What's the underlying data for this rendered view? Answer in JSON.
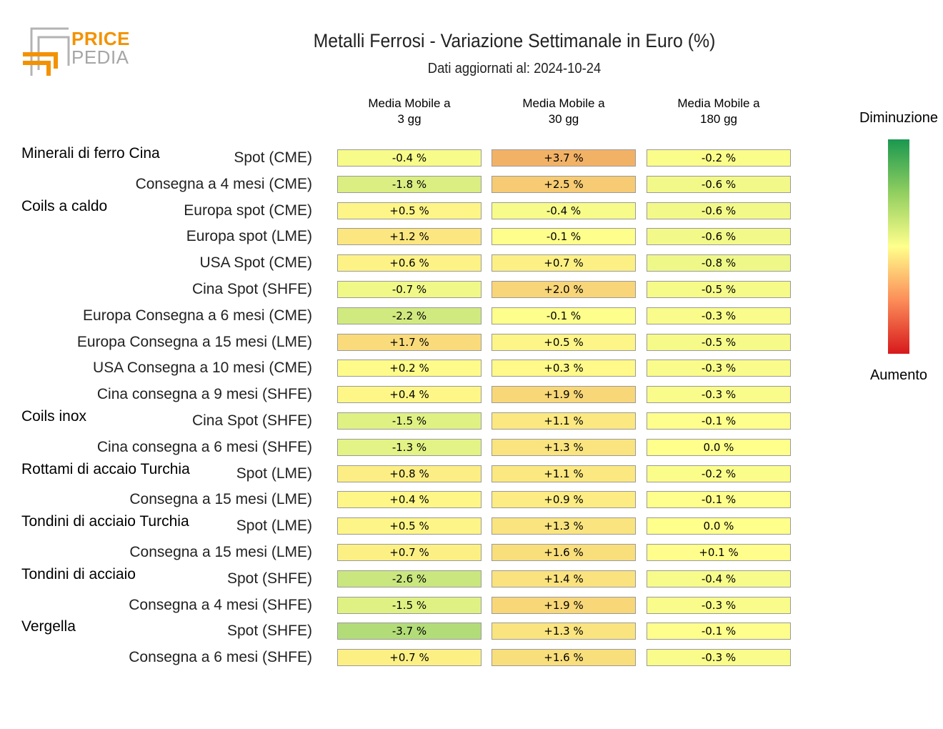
{
  "logo": {
    "line1": "PRICE",
    "line2": "PEDIA"
  },
  "header": {
    "title": "Metalli Ferrosi - Variazione Settimanale in Euro (%)",
    "subtitle": "Dati aggiornati al: 2024-10-24"
  },
  "legend": {
    "top_label": "Diminuzione",
    "bottom_label": "Aumento"
  },
  "chart_data": {
    "type": "table",
    "columns": [
      "Media Mobile a\n3 gg",
      "Media Mobile a\n30 gg",
      "Media Mobile a\n180 gg"
    ],
    "groups": [
      {
        "name": "Minerali di ferro Cina",
        "rows": [
          {
            "label": "Spot (CME)",
            "values": [
              -0.4,
              3.7,
              -0.2
            ]
          },
          {
            "label": "Consegna a 4 mesi (CME)",
            "values": [
              -1.8,
              2.5,
              -0.6
            ]
          }
        ]
      },
      {
        "name": "Coils a caldo",
        "rows": [
          {
            "label": "Europa spot (CME)",
            "values": [
              0.5,
              -0.4,
              -0.6
            ]
          },
          {
            "label": "Europa spot (LME)",
            "values": [
              1.2,
              -0.1,
              -0.6
            ]
          },
          {
            "label": "USA Spot (CME)",
            "values": [
              0.6,
              0.7,
              -0.8
            ]
          },
          {
            "label": "Cina Spot (SHFE)",
            "values": [
              -0.7,
              2.0,
              -0.5
            ]
          },
          {
            "label": "Europa Consegna a 6 mesi (CME)",
            "values": [
              -2.2,
              -0.1,
              -0.3
            ]
          },
          {
            "label": "Europa Consegna a 15 mesi (LME)",
            "values": [
              1.7,
              0.5,
              -0.5
            ]
          },
          {
            "label": "USA Consegna a 10 mesi (CME)",
            "values": [
              0.2,
              0.3,
              -0.3
            ]
          },
          {
            "label": "Cina consegna a 9 mesi (SHFE)",
            "values": [
              0.4,
              1.9,
              -0.3
            ]
          }
        ]
      },
      {
        "name": "Coils inox",
        "rows": [
          {
            "label": "Cina Spot (SHFE)",
            "values": [
              -1.5,
              1.1,
              -0.1
            ]
          },
          {
            "label": "Cina consegna a 6 mesi (SHFE)",
            "values": [
              -1.3,
              1.3,
              0.0
            ]
          }
        ]
      },
      {
        "name": "Rottami di accaio Turchia",
        "rows": [
          {
            "label": "Spot (LME)",
            "values": [
              0.8,
              1.1,
              -0.2
            ]
          },
          {
            "label": "Consegna a 15 mesi (LME)",
            "values": [
              0.4,
              0.9,
              -0.1
            ]
          }
        ]
      },
      {
        "name": "Tondini di acciaio Turchia",
        "rows": [
          {
            "label": "Spot (LME)",
            "values": [
              0.5,
              1.3,
              0.0
            ]
          },
          {
            "label": "Consegna a 15 mesi (LME)",
            "values": [
              0.7,
              1.6,
              0.1
            ]
          }
        ]
      },
      {
        "name": "Tondini di acciaio",
        "rows": [
          {
            "label": "Spot (SHFE)",
            "values": [
              -2.6,
              1.4,
              -0.4
            ]
          },
          {
            "label": "Consegna a 4 mesi (SHFE)",
            "values": [
              -1.5,
              1.9,
              -0.3
            ]
          }
        ]
      },
      {
        "name": "Vergella",
        "rows": [
          {
            "label": "Spot (SHFE)",
            "values": [
              -3.7,
              1.3,
              -0.1
            ]
          },
          {
            "label": "Consegna a 6 mesi (SHFE)",
            "values": [
              0.7,
              1.6,
              -0.3
            ]
          }
        ]
      }
    ],
    "color_scale": {
      "negative": "#1a9850",
      "zero": "#ffff8c",
      "positive": "#d7191c"
    }
  }
}
